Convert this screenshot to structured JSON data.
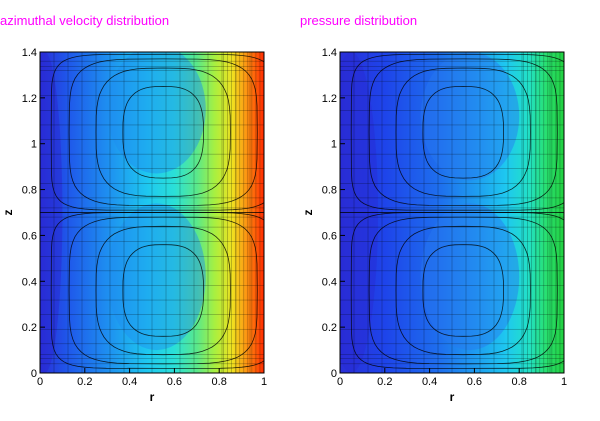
{
  "chart_data": [
    {
      "type": "heatmap",
      "title": "azimuthal velocity distribution",
      "xlabel": "r",
      "ylabel": "z",
      "xlim": [
        0,
        1
      ],
      "ylim": [
        0,
        1.4
      ],
      "xticks": [
        "0",
        "0.2",
        "0.4",
        "0.6",
        "0.8",
        "1"
      ],
      "yticks": [
        "0",
        "0.2",
        "0.4",
        "0.6",
        "0.8",
        "1",
        "1.2",
        "1.4"
      ],
      "colors": {
        "title": "#ff00ff",
        "low": "#1e2ee0",
        "mid": "#22e0f0",
        "high": "#ff2a00"
      },
      "overlay": "streamlines with adaptive mesh grid"
    },
    {
      "type": "heatmap",
      "title": "pressure distribution",
      "xlabel": "r",
      "ylabel": "z",
      "xlim": [
        0,
        1
      ],
      "ylim": [
        0,
        1.4
      ],
      "xticks": [
        "0",
        "0.2",
        "0.4",
        "0.6",
        "0.8",
        "1"
      ],
      "yticks": [
        "0",
        "0.2",
        "0.4",
        "0.6",
        "0.8",
        "1",
        "1.2",
        "1.4"
      ],
      "colors": {
        "title": "#ff00ff",
        "low": "#1a30e8",
        "mid": "#22d8f0",
        "high": "#22d050"
      },
      "overlay": "streamlines with adaptive mesh grid"
    }
  ]
}
